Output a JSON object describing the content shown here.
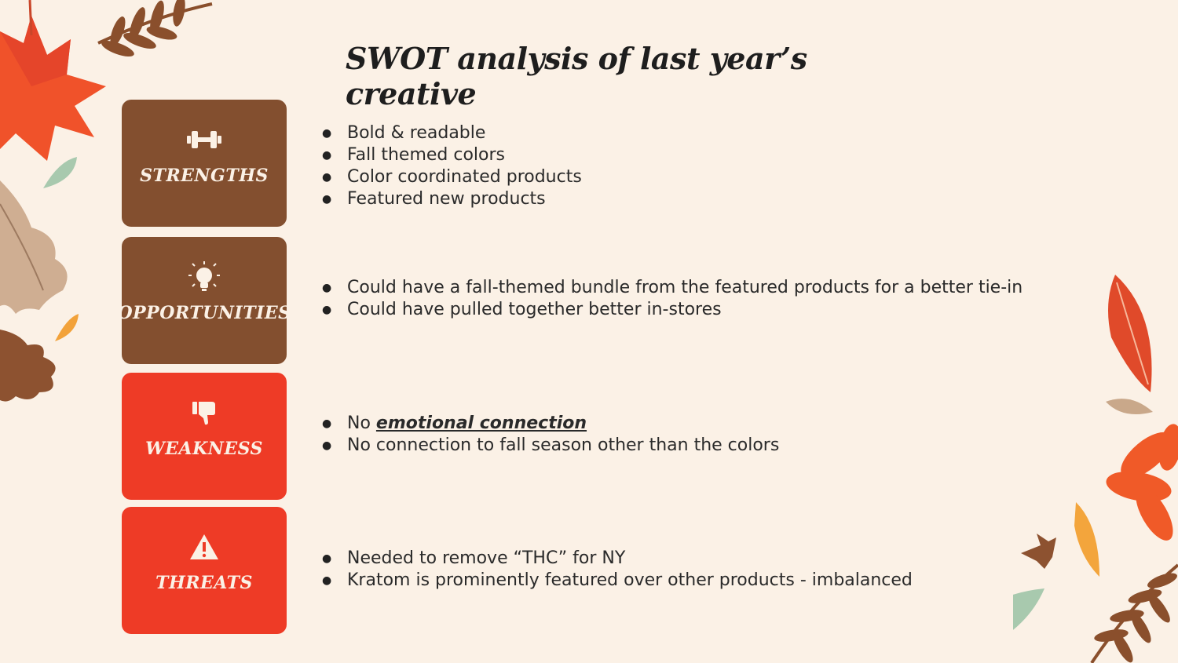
{
  "title": "SWOT analysis of last year’s creative",
  "cards": {
    "strengths": {
      "label": "STRENGTHS",
      "icon": "dumbbell-icon"
    },
    "opportunities": {
      "label": "OPPORTUNITIES",
      "icon": "lightbulb-icon"
    },
    "weakness": {
      "label": "WEAKNESS",
      "icon": "thumbs-down-icon"
    },
    "threats": {
      "label": "THREATS",
      "icon": "warning-icon"
    }
  },
  "colors": {
    "background": "#fbf1e6",
    "brown": "#834f2f",
    "red": "#ee3b26"
  },
  "strengths_points": [
    "Bold & readable",
    "Fall themed colors",
    "Color coordinated products",
    "Featured new products"
  ],
  "opportunities_points": [
    "Could have a fall-themed bundle from the featured products for a better tie-in",
    "Could have pulled together better in-stores"
  ],
  "weakness_points": {
    "p1_prefix": "No ",
    "p1_emphasis": "emotional connection",
    "p2": "No connection to fall season other than the colors"
  },
  "threats_points": [
    "Needed to remove “THC” for NY",
    "Kratom is prominently featured over other products - imbalanced"
  ]
}
